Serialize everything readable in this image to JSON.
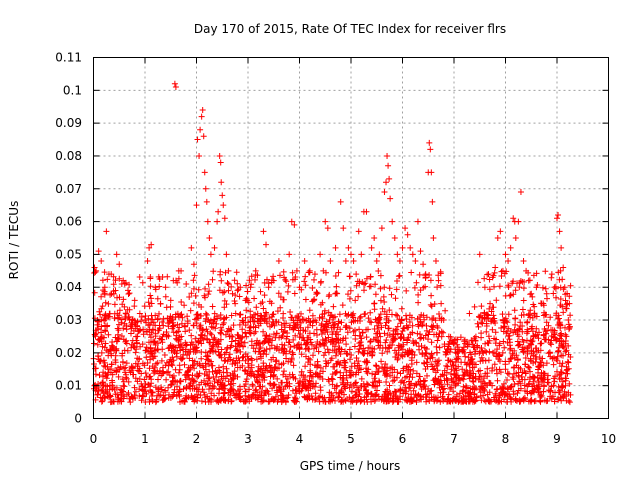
{
  "chart_data": {
    "type": "scatter",
    "title": "Day 170 of 2015, Rate Of TEC Index for receiver flrs",
    "xlabel": "GPS time / hours",
    "ylabel": "ROTI / TECUs",
    "xlim": [
      0,
      10
    ],
    "ylim": [
      0,
      0.11
    ],
    "xticks": [
      "0",
      "1",
      "2",
      "3",
      "4",
      "5",
      "6",
      "7",
      "8",
      "9",
      "10"
    ],
    "yticks": [
      "0",
      "0.01",
      "0.02",
      "0.03",
      "0.04",
      "0.05",
      "0.06",
      "0.07",
      "0.08",
      "0.09",
      "0.1",
      "0.11"
    ],
    "grid": true,
    "marker": "+",
    "color": "#ff0000",
    "series": [
      {
        "name": "ROTI",
        "points": [
          [
            0.02,
            0.046
          ],
          [
            0.05,
            0.045
          ],
          [
            0.1,
            0.051
          ],
          [
            0.15,
            0.048
          ],
          [
            0.22,
            0.04
          ],
          [
            0.25,
            0.057
          ],
          [
            0.3,
            0.044
          ],
          [
            0.35,
            0.038
          ],
          [
            0.45,
            0.05
          ],
          [
            0.5,
            0.047
          ],
          [
            0.55,
            0.041
          ],
          [
            0.6,
            0.034
          ],
          [
            0.7,
            0.03
          ],
          [
            0.8,
            0.036
          ],
          [
            0.9,
            0.032
          ],
          [
            1.0,
            0.03
          ],
          [
            1.05,
            0.048
          ],
          [
            1.08,
            0.052
          ],
          [
            1.12,
            0.053
          ],
          [
            1.2,
            0.04
          ],
          [
            1.3,
            0.035
          ],
          [
            1.4,
            0.04
          ],
          [
            1.5,
            0.036
          ],
          [
            1.55,
            0.042
          ],
          [
            1.58,
            0.102
          ],
          [
            1.6,
            0.101
          ],
          [
            1.7,
            0.045
          ],
          [
            1.8,
            0.041
          ],
          [
            1.9,
            0.052
          ],
          [
            1.95,
            0.047
          ],
          [
            2.0,
            0.065
          ],
          [
            2.02,
            0.085
          ],
          [
            2.05,
            0.08
          ],
          [
            2.07,
            0.088
          ],
          [
            2.1,
            0.092
          ],
          [
            2.12,
            0.094
          ],
          [
            2.14,
            0.086
          ],
          [
            2.16,
            0.075
          ],
          [
            2.18,
            0.07
          ],
          [
            2.2,
            0.066
          ],
          [
            2.22,
            0.06
          ],
          [
            2.25,
            0.055
          ],
          [
            2.28,
            0.05
          ],
          [
            2.35,
            0.052
          ],
          [
            2.4,
            0.06
          ],
          [
            2.42,
            0.063
          ],
          [
            2.45,
            0.08
          ],
          [
            2.47,
            0.078
          ],
          [
            2.48,
            0.072
          ],
          [
            2.5,
            0.068
          ],
          [
            2.52,
            0.065
          ],
          [
            2.55,
            0.061
          ],
          [
            2.58,
            0.05
          ],
          [
            2.62,
            0.045
          ],
          [
            2.7,
            0.038
          ],
          [
            2.75,
            0.035
          ],
          [
            2.85,
            0.04
          ],
          [
            2.95,
            0.036
          ],
          [
            3.05,
            0.04
          ],
          [
            3.15,
            0.045
          ],
          [
            3.25,
            0.035
          ],
          [
            3.3,
            0.057
          ],
          [
            3.35,
            0.053
          ],
          [
            3.4,
            0.04
          ],
          [
            3.5,
            0.042
          ],
          [
            3.6,
            0.048
          ],
          [
            3.7,
            0.043
          ],
          [
            3.8,
            0.05
          ],
          [
            3.85,
            0.06
          ],
          [
            3.9,
            0.059
          ],
          [
            3.95,
            0.045
          ],
          [
            4.0,
            0.04
          ],
          [
            4.1,
            0.048
          ],
          [
            4.2,
            0.045
          ],
          [
            4.3,
            0.044
          ],
          [
            4.4,
            0.05
          ],
          [
            4.5,
            0.06
          ],
          [
            4.55,
            0.058
          ],
          [
            4.6,
            0.048
          ],
          [
            4.7,
            0.052
          ],
          [
            4.8,
            0.066
          ],
          [
            4.85,
            0.058
          ],
          [
            4.9,
            0.048
          ],
          [
            4.95,
            0.052
          ],
          [
            5.0,
            0.05
          ],
          [
            5.05,
            0.048
          ],
          [
            5.1,
            0.044
          ],
          [
            5.15,
            0.057
          ],
          [
            5.2,
            0.05
          ],
          [
            5.25,
            0.063
          ],
          [
            5.3,
            0.063
          ],
          [
            5.4,
            0.052
          ],
          [
            5.45,
            0.055
          ],
          [
            5.5,
            0.048
          ],
          [
            5.55,
            0.05
          ],
          [
            5.6,
            0.058
          ],
          [
            5.65,
            0.069
          ],
          [
            5.68,
            0.072
          ],
          [
            5.7,
            0.08
          ],
          [
            5.72,
            0.077
          ],
          [
            5.74,
            0.073
          ],
          [
            5.76,
            0.067
          ],
          [
            5.8,
            0.06
          ],
          [
            5.85,
            0.055
          ],
          [
            5.9,
            0.05
          ],
          [
            5.95,
            0.048
          ],
          [
            6.0,
            0.052
          ],
          [
            6.05,
            0.058
          ],
          [
            6.1,
            0.056
          ],
          [
            6.15,
            0.052
          ],
          [
            6.2,
            0.05
          ],
          [
            6.25,
            0.048
          ],
          [
            6.3,
            0.06
          ],
          [
            6.35,
            0.051
          ],
          [
            6.4,
            0.047
          ],
          [
            6.45,
            0.044
          ],
          [
            6.5,
            0.075
          ],
          [
            6.52,
            0.084
          ],
          [
            6.54,
            0.082
          ],
          [
            6.56,
            0.075
          ],
          [
            6.58,
            0.066
          ],
          [
            6.6,
            0.055
          ],
          [
            6.65,
            0.048
          ],
          [
            6.7,
            0.042
          ],
          [
            6.75,
            0.035
          ],
          [
            6.8,
            0.03
          ],
          [
            6.9,
            0.025
          ],
          [
            7.0,
            0.023
          ],
          [
            7.1,
            0.021
          ],
          [
            7.2,
            0.02
          ],
          [
            7.3,
            0.032
          ],
          [
            7.4,
            0.034
          ],
          [
            7.5,
            0.05
          ],
          [
            7.6,
            0.04
          ],
          [
            7.7,
            0.035
          ],
          [
            7.75,
            0.043
          ],
          [
            7.8,
            0.046
          ],
          [
            7.85,
            0.055
          ],
          [
            7.9,
            0.057
          ],
          [
            7.95,
            0.045
          ],
          [
            8.0,
            0.05
          ],
          [
            8.05,
            0.048
          ],
          [
            8.1,
            0.052
          ],
          [
            8.15,
            0.061
          ],
          [
            8.18,
            0.06
          ],
          [
            8.2,
            0.055
          ],
          [
            8.25,
            0.06
          ],
          [
            8.3,
            0.069
          ],
          [
            8.35,
            0.048
          ],
          [
            8.4,
            0.045
          ],
          [
            8.45,
            0.042
          ],
          [
            8.5,
            0.038
          ],
          [
            8.6,
            0.04
          ],
          [
            8.7,
            0.035
          ],
          [
            8.8,
            0.038
          ],
          [
            8.9,
            0.044
          ],
          [
            8.95,
            0.04
          ],
          [
            9.0,
            0.061
          ],
          [
            9.02,
            0.062
          ],
          [
            9.05,
            0.057
          ],
          [
            9.08,
            0.052
          ],
          [
            9.12,
            0.046
          ],
          [
            9.15,
            0.04
          ],
          [
            9.2,
            0.035
          ],
          [
            9.22,
            0.03
          ],
          [
            9.25,
            0.028
          ]
        ]
      }
    ]
  }
}
